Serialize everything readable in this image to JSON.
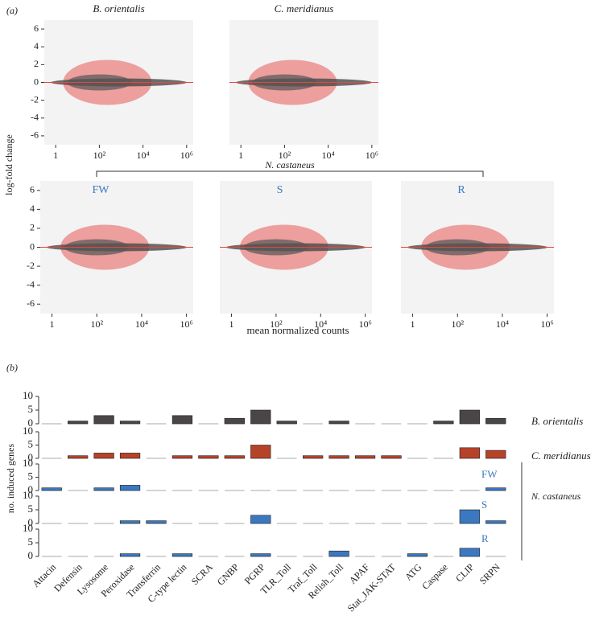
{
  "figure": {
    "panel_a": "(a)",
    "panel_b": "(b)",
    "y_label": "log-fold change",
    "x_label": "mean normalized counts",
    "group_label": "N. castaneus"
  },
  "chart_data": [
    {
      "type": "scatter",
      "title": "B. orientalis",
      "xlim": [
        0.3,
        2000000
      ],
      "ylim": [
        -7,
        7
      ],
      "log_x": true,
      "xticks": [
        1,
        {
          "value": 100,
          "label": "10²"
        },
        {
          "value": 10000,
          "label": "10⁴"
        },
        {
          "value": 1000000,
          "label": "10⁶"
        }
      ],
      "yticks": [
        -6,
        -4,
        -2,
        0,
        2,
        4,
        6
      ],
      "hline": 0,
      "hline_color": "#e8453c"
    },
    {
      "type": "scatter",
      "title": "C. meridianus",
      "xlim": [
        0.3,
        2000000
      ],
      "ylim": [
        -7,
        7
      ],
      "log_x": true,
      "xticks": [
        1,
        {
          "value": 100,
          "label": "10²"
        },
        {
          "value": 10000,
          "label": "10⁴"
        },
        {
          "value": 1000000,
          "label": "10⁶"
        }
      ],
      "hline": 0,
      "hline_color": "#e8453c"
    },
    {
      "type": "scatter",
      "title": "FW",
      "title_color": "#3b78c0",
      "xlim": [
        0.3,
        2000000
      ],
      "ylim": [
        -7,
        7
      ],
      "log_x": true,
      "xticks": [
        1,
        {
          "value": 100,
          "label": "10²"
        },
        {
          "value": 10000,
          "label": "10⁴"
        },
        {
          "value": 1000000,
          "label": "10⁶"
        }
      ],
      "yticks": [
        -6,
        -4,
        -2,
        0,
        2,
        4,
        6
      ],
      "hline": 0,
      "hline_color": "#e8453c"
    },
    {
      "type": "scatter",
      "title": "S",
      "title_color": "#3b78c0",
      "xlim": [
        0.3,
        2000000
      ],
      "ylim": [
        -7,
        7
      ],
      "log_x": true,
      "xticks": [
        1,
        {
          "value": 100,
          "label": "10²"
        },
        {
          "value": 10000,
          "label": "10⁴"
        },
        {
          "value": 1000000,
          "label": "10⁶"
        }
      ],
      "hline": 0,
      "hline_color": "#e8453c"
    },
    {
      "type": "scatter",
      "title": "R",
      "title_color": "#3b78c0",
      "xlim": [
        0.3,
        2000000
      ],
      "ylim": [
        -7,
        7
      ],
      "log_x": true,
      "xticks": [
        1,
        {
          "value": 100,
          "label": "10²"
        },
        {
          "value": 10000,
          "label": "10⁴"
        },
        {
          "value": 1000000,
          "label": "10⁶"
        }
      ],
      "hline": 0,
      "hline_color": "#e8453c"
    },
    {
      "type": "bar",
      "y_label": "no. induced genes",
      "group_label": "N. castaneus",
      "ylim": [
        0,
        10
      ],
      "yticks": [
        0,
        5,
        10
      ],
      "categories": [
        "Attacin",
        "Defensin",
        "Lysosome",
        "Peroxidase",
        "Transferrin",
        "C-type lectin",
        "SCRA",
        "GNBP",
        "PGRP",
        "TLR_Toll",
        "Traf_Toll",
        "Relish_Toll",
        "APAF",
        "Stat_JAK-STAT",
        "ATG",
        "Caspase",
        "CLIP",
        "SRPN"
      ],
      "series": [
        {
          "name": "B. orientalis",
          "color": "#4a4546",
          "values": [
            0,
            1,
            3,
            1,
            0,
            3,
            0,
            2,
            5,
            1,
            0,
            1,
            0,
            0,
            0,
            1,
            5,
            2
          ]
        },
        {
          "name": "C. meridianus",
          "color": "#b5432a",
          "values": [
            0,
            1,
            2,
            2,
            0,
            1,
            1,
            1,
            5,
            0,
            1,
            1,
            1,
            1,
            0,
            0,
            4,
            3
          ]
        },
        {
          "name": "FW",
          "color": "#3b78c0",
          "values": [
            1,
            0,
            1,
            2,
            0,
            0,
            0,
            0,
            0,
            0,
            0,
            0,
            0,
            0,
            0,
            0,
            0,
            1
          ]
        },
        {
          "name": "S",
          "color": "#3b78c0",
          "values": [
            0,
            0,
            0,
            1,
            1,
            0,
            0,
            0,
            3,
            0,
            0,
            0,
            0,
            0,
            0,
            0,
            5,
            1
          ]
        },
        {
          "name": "R",
          "color": "#3b78c0",
          "values": [
            0,
            0,
            0,
            1,
            0,
            1,
            0,
            0,
            1,
            0,
            0,
            2,
            0,
            0,
            1,
            0,
            3,
            0
          ]
        }
      ]
    }
  ]
}
